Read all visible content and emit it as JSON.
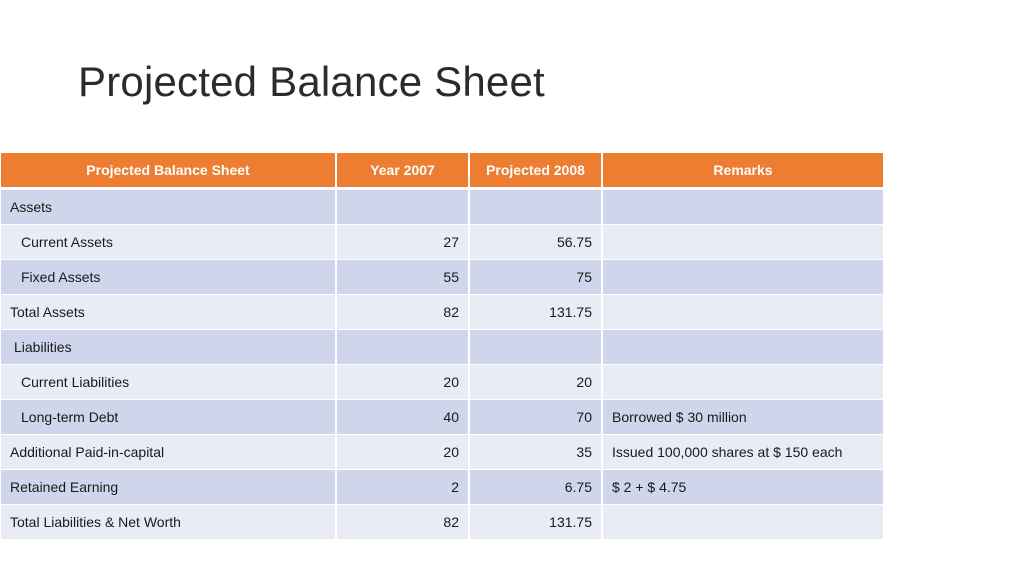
{
  "slide": {
    "title": "Projected Balance Sheet"
  },
  "table": {
    "headers": [
      "Projected Balance Sheet",
      "Year 2007",
      "Projected 2008",
      "Remarks"
    ],
    "rows": [
      {
        "label": "Assets",
        "y2007": "",
        "p2008": "",
        "remarks": ""
      },
      {
        "label": "Current Assets",
        "y2007": "27",
        "p2008": "56.75",
        "remarks": ""
      },
      {
        "label": "Fixed Assets",
        "y2007": "55",
        "p2008": "75",
        "remarks": ""
      },
      {
        "label": "Total Assets",
        "y2007": "82",
        "p2008": "131.75",
        "remarks": ""
      },
      {
        "label": "Liabilities",
        "y2007": "",
        "p2008": "",
        "remarks": ""
      },
      {
        "label": "Current Liabilities",
        "y2007": "20",
        "p2008": "20",
        "remarks": ""
      },
      {
        "label": "Long-term Debt",
        "y2007": "40",
        "p2008": "70",
        "remarks": "Borrowed $ 30 million"
      },
      {
        "label": "Additional Paid-in-capital",
        "y2007": "20",
        "p2008": "35",
        "remarks": "Issued 100,000 shares at  $ 150 each"
      },
      {
        "label": "Retained Earning",
        "y2007": "2",
        "p2008": "6.75",
        "remarks": "$ 2 + $ 4.75"
      },
      {
        "label": "Total Liabilities & Net Worth",
        "y2007": "82",
        "p2008": "131.75",
        "remarks": ""
      }
    ]
  },
  "colors": {
    "header_bg": "#ed7d31",
    "row_dark": "#cfd5ea",
    "row_light": "#e9ebf5"
  }
}
